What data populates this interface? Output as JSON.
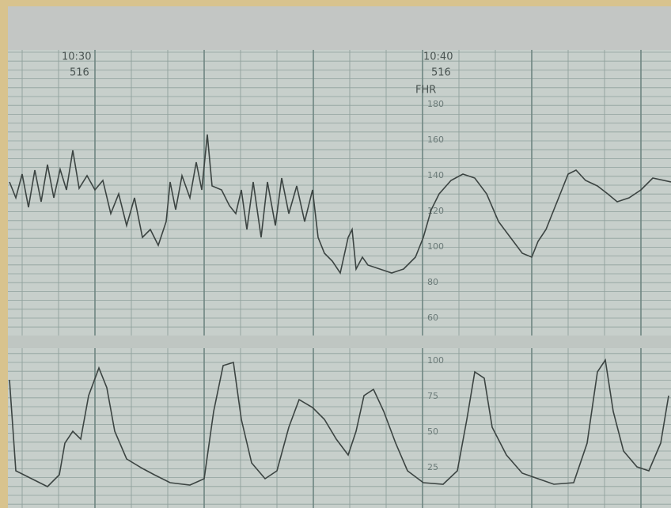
{
  "header": {
    "markers": [
      {
        "time": "10:30",
        "code": "516"
      },
      {
        "time": "10:40",
        "code": "516"
      }
    ],
    "channel": "FHR"
  },
  "scale": {
    "fhr": [
      "180",
      "160",
      "140",
      "120",
      "100",
      "80",
      "60"
    ],
    "toco": [
      "100",
      "75",
      "50",
      "25"
    ]
  }
}
